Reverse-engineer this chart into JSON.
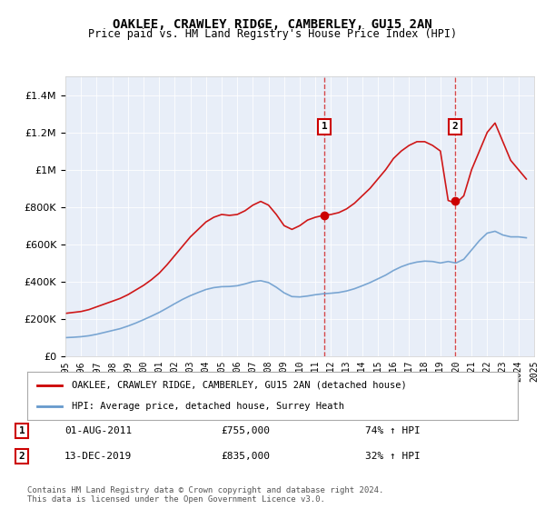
{
  "title": "OAKLEE, CRAWLEY RIDGE, CAMBERLEY, GU15 2AN",
  "subtitle": "Price paid vs. HM Land Registry's House Price Index (HPI)",
  "background_color": "#f0f4ff",
  "plot_bg_color": "#e8eef8",
  "ylim": [
    0,
    1500000
  ],
  "yticks": [
    0,
    200000,
    400000,
    600000,
    800000,
    1000000,
    1200000,
    1400000
  ],
  "ytick_labels": [
    "£0",
    "£200K",
    "£400K",
    "£600K",
    "£800K",
    "£1M",
    "£1.2M",
    "£1.4M"
  ],
  "xmin_year": 1995,
  "xmax_year": 2025,
  "marker1_year": 2011.58,
  "marker1_price": 755000,
  "marker1_label": "1",
  "marker1_date": "01-AUG-2011",
  "marker1_pct": "74% ↑ HPI",
  "marker2_year": 2019.95,
  "marker2_price": 835000,
  "marker2_label": "2",
  "marker2_date": "13-DEC-2019",
  "marker2_pct": "32% ↑ HPI",
  "red_line_color": "#cc0000",
  "blue_line_color": "#6699cc",
  "legend_line1": "OAKLEE, CRAWLEY RIDGE, CAMBERLEY, GU15 2AN (detached house)",
  "legend_line2": "HPI: Average price, detached house, Surrey Heath",
  "footer": "Contains HM Land Registry data © Crown copyright and database right 2024.\nThis data is licensed under the Open Government Licence v3.0.",
  "red_x": [
    1995.0,
    1995.5,
    1996.0,
    1996.5,
    1997.0,
    1997.5,
    1998.0,
    1998.5,
    1999.0,
    1999.5,
    2000.0,
    2000.5,
    2001.0,
    2001.5,
    2002.0,
    2002.5,
    2003.0,
    2003.5,
    2004.0,
    2004.5,
    2005.0,
    2005.5,
    2006.0,
    2006.5,
    2007.0,
    2007.5,
    2008.0,
    2008.5,
    2009.0,
    2009.5,
    2010.0,
    2010.5,
    2011.0,
    2011.5,
    2012.0,
    2012.5,
    2013.0,
    2013.5,
    2014.0,
    2014.5,
    2015.0,
    2015.5,
    2016.0,
    2016.5,
    2017.0,
    2017.5,
    2018.0,
    2018.5,
    2019.0,
    2019.5,
    2020.0,
    2020.5,
    2021.0,
    2021.5,
    2022.0,
    2022.5,
    2023.0,
    2023.5,
    2024.0,
    2024.5
  ],
  "red_y": [
    230000,
    235000,
    240000,
    250000,
    265000,
    280000,
    295000,
    310000,
    330000,
    355000,
    380000,
    410000,
    445000,
    490000,
    540000,
    590000,
    640000,
    680000,
    720000,
    745000,
    760000,
    755000,
    760000,
    780000,
    810000,
    830000,
    810000,
    760000,
    700000,
    680000,
    700000,
    730000,
    745000,
    755000,
    760000,
    770000,
    790000,
    820000,
    860000,
    900000,
    950000,
    1000000,
    1060000,
    1100000,
    1130000,
    1150000,
    1150000,
    1130000,
    1100000,
    835000,
    820000,
    860000,
    1000000,
    1100000,
    1200000,
    1250000,
    1150000,
    1050000,
    1000000,
    950000
  ],
  "blue_x": [
    1995.0,
    1995.5,
    1996.0,
    1996.5,
    1997.0,
    1997.5,
    1998.0,
    1998.5,
    1999.0,
    1999.5,
    2000.0,
    2000.5,
    2001.0,
    2001.5,
    2002.0,
    2002.5,
    2003.0,
    2003.5,
    2004.0,
    2004.5,
    2005.0,
    2005.5,
    2006.0,
    2006.5,
    2007.0,
    2007.5,
    2008.0,
    2008.5,
    2009.0,
    2009.5,
    2010.0,
    2010.5,
    2011.0,
    2011.5,
    2012.0,
    2012.5,
    2013.0,
    2013.5,
    2014.0,
    2014.5,
    2015.0,
    2015.5,
    2016.0,
    2016.5,
    2017.0,
    2017.5,
    2018.0,
    2018.5,
    2019.0,
    2019.5,
    2020.0,
    2020.5,
    2021.0,
    2021.5,
    2022.0,
    2022.5,
    2023.0,
    2023.5,
    2024.0,
    2024.5
  ],
  "blue_y": [
    100000,
    102000,
    105000,
    110000,
    118000,
    128000,
    138000,
    148000,
    162000,
    178000,
    196000,
    215000,
    235000,
    258000,
    282000,
    305000,
    325000,
    342000,
    358000,
    368000,
    373000,
    374000,
    378000,
    388000,
    400000,
    405000,
    395000,
    370000,
    340000,
    320000,
    318000,
    323000,
    330000,
    335000,
    338000,
    342000,
    350000,
    362000,
    378000,
    395000,
    415000,
    435000,
    460000,
    480000,
    495000,
    505000,
    510000,
    508000,
    500000,
    508000,
    500000,
    520000,
    570000,
    620000,
    660000,
    670000,
    650000,
    640000,
    640000,
    635000
  ],
  "xtick_years": [
    1995,
    1996,
    1997,
    1998,
    1999,
    2000,
    2001,
    2002,
    2003,
    2004,
    2005,
    2006,
    2007,
    2008,
    2009,
    2010,
    2011,
    2012,
    2013,
    2014,
    2015,
    2016,
    2017,
    2018,
    2019,
    2020,
    2021,
    2022,
    2023,
    2024,
    2025
  ]
}
